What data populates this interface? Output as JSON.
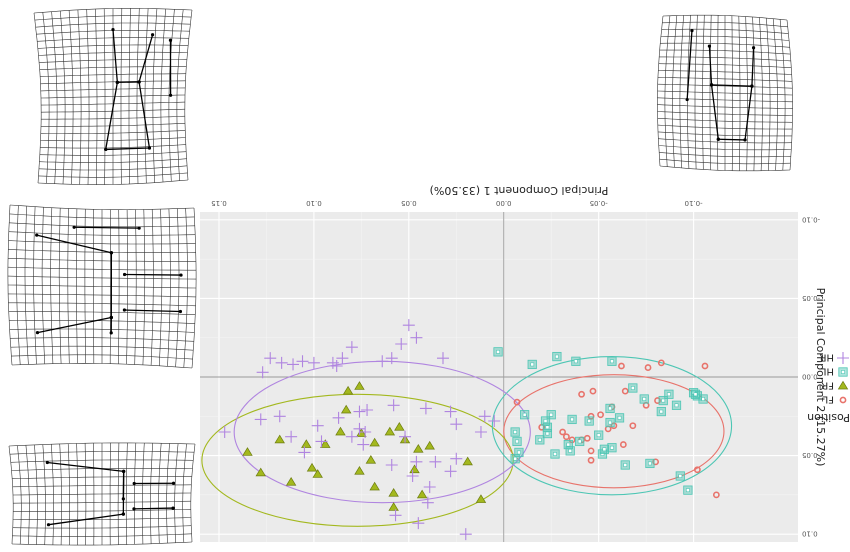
{
  "figure": {
    "x_axis_title": "Principal Component 1 (33.50%)",
    "y_axis_title": "Principal Component 2 (15.27%)",
    "legend_title": "Position",
    "legend_items": [
      {
        "label": "FL",
        "shape": "circle",
        "color": "#e8736b"
      },
      {
        "label": "FR",
        "shape": "triangle",
        "color": "#a3b81e"
      },
      {
        "label": "HL",
        "shape": "square",
        "color": "#4dc6b4"
      },
      {
        "label": "HR",
        "shape": "plus",
        "color": "#b085e0"
      }
    ],
    "note": "Figure is rendered rotated 180 degrees (upside-down text)."
  },
  "chart_data": {
    "type": "scatter",
    "xlabel": "Principal Component 1 (33.50%)",
    "ylabel": "Principal Component 2 (15.27%)",
    "xlim": [
      -0.155,
      0.16
    ],
    "ylim": [
      -0.105,
      0.105
    ],
    "x_ticks": [
      -0.1,
      -0.05,
      0.0,
      0.05,
      0.1,
      0.15
    ],
    "x_tick_labels": [
      "-0.10",
      "-0.05",
      "0.00",
      "0.05",
      "0.10",
      "0.15"
    ],
    "y_ticks": [
      -0.1,
      -0.05,
      0.0,
      0.05,
      0.1
    ],
    "y_tick_labels": [
      "-0.10",
      "-0.05",
      "0.00",
      "0.05",
      "0.10"
    ],
    "grid": true,
    "legend_position": "right",
    "series": [
      {
        "name": "FL",
        "shape": "circle",
        "color": "#e8736b",
        "points": [
          [
            -0.112,
            0.075
          ],
          [
            -0.102,
            0.059
          ],
          [
            -0.08,
            0.054
          ],
          [
            -0.063,
            0.043
          ],
          [
            -0.046,
            0.047
          ],
          [
            -0.046,
            0.053
          ],
          [
            -0.044,
            0.039
          ],
          [
            -0.055,
            0.033
          ],
          [
            -0.058,
            0.031
          ],
          [
            -0.068,
            0.031
          ],
          [
            -0.041,
            0.04
          ],
          [
            -0.036,
            0.04
          ],
          [
            -0.033,
            0.038
          ],
          [
            -0.031,
            0.035
          ],
          [
            -0.046,
            0.025
          ],
          [
            -0.051,
            0.024
          ],
          [
            -0.057,
            0.019
          ],
          [
            -0.075,
            0.018
          ],
          [
            -0.081,
            0.015
          ],
          [
            -0.064,
            0.009
          ],
          [
            -0.047,
            0.009
          ],
          [
            -0.041,
            0.011
          ],
          [
            -0.062,
            -0.007
          ],
          [
            -0.076,
            -0.006
          ],
          [
            -0.083,
            -0.009
          ],
          [
            -0.106,
            -0.007
          ],
          [
            -0.02,
            0.032
          ],
          [
            -0.007,
            0.016
          ]
        ]
      },
      {
        "name": "FR",
        "shape": "triangle",
        "color": "#a3b81e",
        "points": [
          [
            0.012,
            0.078
          ],
          [
            0.019,
            0.054
          ],
          [
            0.043,
            0.075
          ],
          [
            0.058,
            0.074
          ],
          [
            0.047,
            0.059
          ],
          [
            0.058,
            0.083
          ],
          [
            0.068,
            0.07
          ],
          [
            0.07,
            0.053
          ],
          [
            0.076,
            0.06
          ],
          [
            0.098,
            0.062
          ],
          [
            0.101,
            0.058
          ],
          [
            0.112,
            0.067
          ],
          [
            0.128,
            0.061
          ],
          [
            0.039,
            0.044
          ],
          [
            0.045,
            0.046
          ],
          [
            0.052,
            0.04
          ],
          [
            0.06,
            0.035
          ],
          [
            0.068,
            0.042
          ],
          [
            0.075,
            0.036
          ],
          [
            0.086,
            0.035
          ],
          [
            0.094,
            0.043
          ],
          [
            0.104,
            0.043
          ],
          [
            0.118,
            0.04
          ],
          [
            0.135,
            0.048
          ],
          [
            0.082,
            0.009
          ],
          [
            0.076,
            0.006
          ],
          [
            0.083,
            0.021
          ],
          [
            0.055,
            0.032
          ]
        ]
      },
      {
        "name": "HL",
        "shape": "square",
        "color": "#4dc6b4",
        "points": [
          [
            -0.097,
            0.072
          ],
          [
            -0.093,
            0.063
          ],
          [
            -0.077,
            0.055
          ],
          [
            -0.052,
            0.049
          ],
          [
            -0.057,
            0.045
          ],
          [
            -0.035,
            0.047
          ],
          [
            -0.034,
            0.043
          ],
          [
            -0.019,
            0.04
          ],
          [
            -0.023,
            0.036
          ],
          [
            -0.007,
            0.041
          ],
          [
            -0.008,
            0.048
          ],
          [
            -0.006,
            0.052
          ],
          [
            -0.023,
            0.032
          ],
          [
            -0.022,
            0.028
          ],
          [
            -0.025,
            0.024
          ],
          [
            -0.036,
            0.027
          ],
          [
            -0.045,
            0.028
          ],
          [
            -0.056,
            0.029
          ],
          [
            -0.061,
            0.026
          ],
          [
            -0.056,
            0.02
          ],
          [
            -0.083,
            0.022
          ],
          [
            -0.091,
            0.018
          ],
          [
            -0.105,
            0.014
          ],
          [
            -0.102,
            0.012
          ],
          [
            -0.074,
            0.014
          ],
          [
            -0.068,
            0.007
          ],
          [
            -0.057,
            -0.01
          ],
          [
            -0.038,
            -0.01
          ],
          [
            -0.028,
            -0.013
          ],
          [
            -0.053,
            0.046
          ],
          [
            -0.027,
            0.049
          ],
          [
            -0.011,
            0.024
          ],
          [
            -0.006,
            0.035
          ],
          [
            -0.064,
            0.056
          ],
          [
            -0.05,
            0.037
          ],
          [
            -0.04,
            0.041
          ],
          [
            0.003,
            -0.016
          ],
          [
            -0.015,
            -0.008
          ],
          [
            -0.084,
            0.015
          ],
          [
            -0.087,
            0.011
          ],
          [
            -0.1,
            0.01
          ],
          [
            -0.101,
            0.011
          ]
        ]
      },
      {
        "name": "HR",
        "shape": "plus",
        "color": "#b085e0",
        "points": [
          [
            0.02,
            0.1
          ],
          [
            0.045,
            0.093
          ],
          [
            0.057,
            0.088
          ],
          [
            0.04,
            0.08
          ],
          [
            0.039,
            0.07
          ],
          [
            0.028,
            0.06
          ],
          [
            0.025,
            0.052
          ],
          [
            0.036,
            0.054
          ],
          [
            0.046,
            0.054
          ],
          [
            0.048,
            0.063
          ],
          [
            0.059,
            0.056
          ],
          [
            0.052,
            0.038
          ],
          [
            0.074,
            0.043
          ],
          [
            0.076,
            0.033
          ],
          [
            0.08,
            0.038
          ],
          [
            0.096,
            0.041
          ],
          [
            0.098,
            0.031
          ],
          [
            0.112,
            0.038
          ],
          [
            0.118,
            0.025
          ],
          [
            0.105,
            0.048
          ],
          [
            0.087,
            0.026
          ],
          [
            0.076,
            0.022
          ],
          [
            0.073,
            0.035
          ],
          [
            0.058,
            0.018
          ],
          [
            0.041,
            0.02
          ],
          [
            0.025,
            0.03
          ],
          [
            0.01,
            0.025
          ],
          [
            0.005,
            0.028
          ],
          [
            0.012,
            0.035
          ],
          [
            0.028,
            0.022
          ],
          [
            0.032,
            -0.012
          ],
          [
            0.046,
            -0.025
          ],
          [
            0.05,
            -0.033
          ],
          [
            0.054,
            -0.021
          ],
          [
            0.059,
            -0.012
          ],
          [
            0.064,
            -0.01
          ],
          [
            0.08,
            -0.019
          ],
          [
            0.085,
            -0.012
          ],
          [
            0.088,
            -0.007
          ],
          [
            0.09,
            -0.009
          ],
          [
            0.1,
            -0.009
          ],
          [
            0.106,
            -0.01
          ],
          [
            0.111,
            -0.008
          ],
          [
            0.117,
            -0.009
          ],
          [
            0.123,
            -0.012
          ],
          [
            0.127,
            -0.003
          ],
          [
            0.147,
            0.035
          ],
          [
            0.128,
            0.027
          ],
          [
            0.072,
            0.021
          ]
        ]
      }
    ],
    "ellipses": [
      {
        "name": "FL",
        "color": "#e8736b",
        "cx": -0.058,
        "cy": 0.0345,
        "rx": 0.058,
        "ry": 0.036
      },
      {
        "name": "FR",
        "color": "#a3b81e",
        "cx": 0.077,
        "cy": 0.053,
        "rx": 0.082,
        "ry": 0.042
      },
      {
        "name": "HL",
        "color": "#4dc6b4",
        "cx": -0.057,
        "cy": 0.031,
        "rx": 0.063,
        "ry": 0.044
      },
      {
        "name": "HR",
        "color": "#b085e0",
        "cx": 0.064,
        "cy": 0.035,
        "rx": 0.078,
        "ry": 0.045
      }
    ]
  }
}
